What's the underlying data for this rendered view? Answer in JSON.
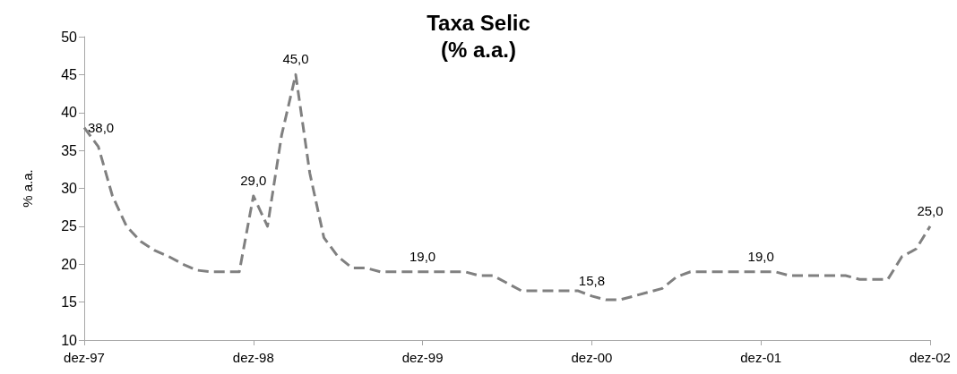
{
  "chart_data": {
    "type": "line",
    "title": "Taxa Selic",
    "subtitle": "(% a.a.)",
    "ylabel": "% a.a.",
    "categories": [
      "dez-97",
      null,
      null,
      null,
      null,
      null,
      null,
      null,
      null,
      null,
      null,
      null,
      "dez-98",
      null,
      null,
      null,
      null,
      null,
      null,
      null,
      null,
      null,
      null,
      null,
      "dez-99",
      null,
      null,
      null,
      null,
      null,
      null,
      null,
      null,
      null,
      null,
      null,
      "dez-00",
      null,
      null,
      null,
      null,
      null,
      null,
      null,
      null,
      null,
      null,
      null,
      "dez-01",
      null,
      null,
      null,
      null,
      null,
      null,
      null,
      null,
      null,
      null,
      null,
      "dez-02"
    ],
    "series": [
      {
        "color": "#808080",
        "values": [
          38,
          35.5,
          29,
          25,
          23,
          21.8,
          21,
          20,
          19.2,
          19,
          19,
          19,
          29,
          25,
          37,
          45,
          32,
          23.5,
          21,
          19.5,
          19.5,
          19,
          19,
          19,
          19,
          19,
          19,
          19,
          18.5,
          18.5,
          17.5,
          16.5,
          16.5,
          16.5,
          16.5,
          16.5,
          15.8,
          15.3,
          15.3,
          15.8,
          16.3,
          16.8,
          18.3,
          19,
          19,
          19,
          19,
          19,
          19,
          19,
          18.5,
          18.5,
          18.5,
          18.5,
          18.5,
          18,
          18,
          18,
          21,
          22,
          25
        ],
        "value_labels": [
          "38,0",
          null,
          null,
          null,
          null,
          null,
          null,
          null,
          null,
          null,
          null,
          null,
          "29,0",
          null,
          null,
          "45,0",
          null,
          null,
          null,
          null,
          null,
          null,
          null,
          null,
          "19,0",
          null,
          null,
          null,
          null,
          null,
          null,
          null,
          null,
          null,
          null,
          null,
          "15,8",
          null,
          null,
          null,
          null,
          null,
          null,
          null,
          null,
          null,
          null,
          null,
          "19,0",
          null,
          null,
          null,
          null,
          null,
          null,
          null,
          null,
          null,
          null,
          null,
          "25,0"
        ]
      }
    ],
    "ylim": [
      10,
      50
    ],
    "yticks": [
      10,
      15,
      20,
      25,
      30,
      35,
      40,
      45,
      50
    ],
    "grid": false,
    "marker": "none",
    "line_style": "dashed"
  }
}
